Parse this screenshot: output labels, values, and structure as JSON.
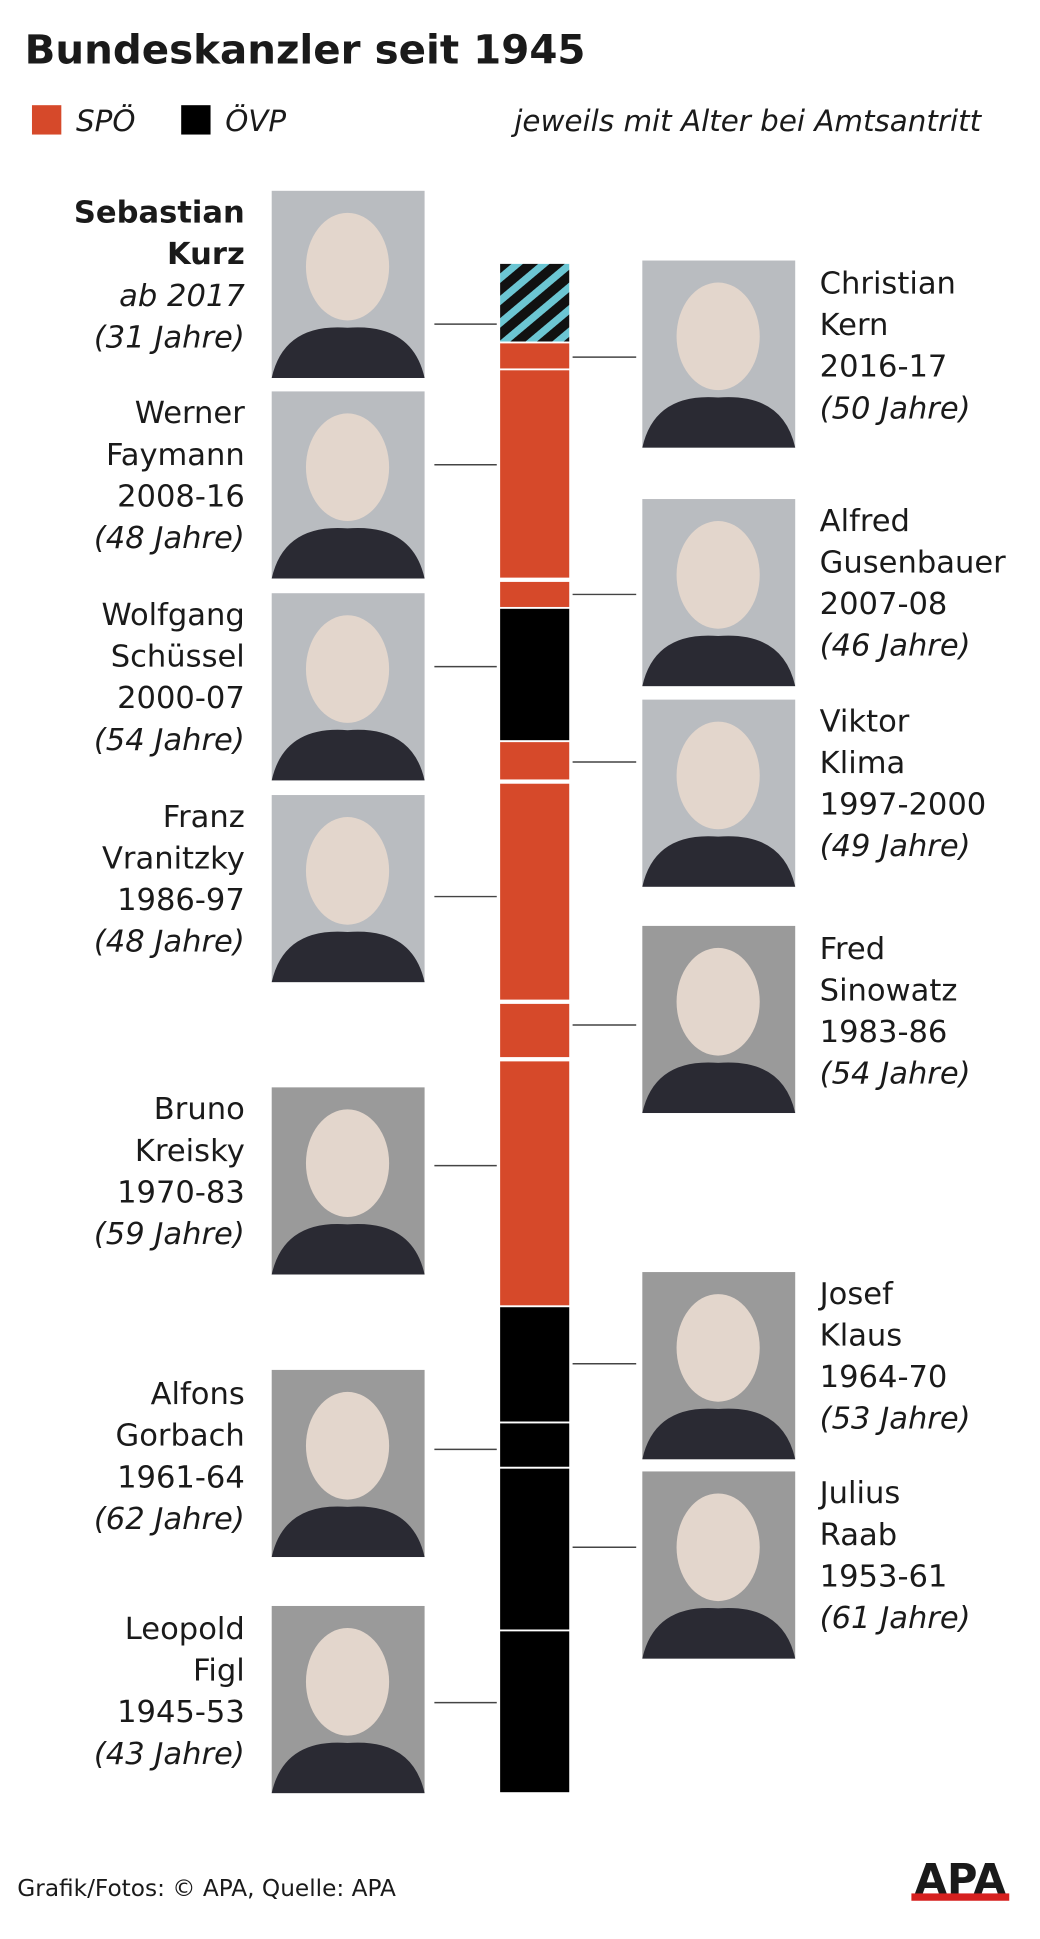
{
  "header": {
    "title": "Bundeskanzler seit 1945",
    "legend": [
      "SPÖ",
      "ÖVP"
    ],
    "note": "jeweils mit Alter bei Amtsantritt"
  },
  "chancellors": [
    {
      "name": [
        "Sebastian",
        "Kurz"
      ],
      "term": "ab 2017",
      "age": "(31 Jahre)"
    },
    {
      "name": [
        "Christian",
        "Kern"
      ],
      "term": "2016-17",
      "age": "(50 Jahre)"
    },
    {
      "name": [
        "Werner",
        "Faymann"
      ],
      "term": "2008-16",
      "age": "(48 Jahre)"
    },
    {
      "name": [
        "Alfred",
        "Gusenbauer"
      ],
      "term": "2007-08",
      "age": "(46 Jahre)"
    },
    {
      "name": [
        "Wolfgang",
        "Schüssel"
      ],
      "term": "2000-07",
      "age": "(54 Jahre)"
    },
    {
      "name": [
        "Viktor",
        "Klima"
      ],
      "term": "1997-2000",
      "age": "(49 Jahre)"
    },
    {
      "name": [
        "Franz",
        "Vranitzky"
      ],
      "term": "1986-97",
      "age": "(48 Jahre)"
    },
    {
      "name": [
        "Fred",
        "Sinowatz"
      ],
      "term": "1983-86",
      "age": "(54 Jahre)"
    },
    {
      "name": [
        "Bruno",
        "Kreisky"
      ],
      "term": "1970-83",
      "age": "(59 Jahre)"
    },
    {
      "name": [
        "Josef",
        "Klaus"
      ],
      "term": "1964-70",
      "age": "(53 Jahre)"
    },
    {
      "name": [
        "Alfons",
        "Gorbach"
      ],
      "term": "1961-64",
      "age": "(62 Jahre)"
    },
    {
      "name": [
        "Julius",
        "Raab"
      ],
      "term": "1953-61",
      "age": "(61 Jahre)"
    },
    {
      "name": [
        "Leopold",
        "Figl"
      ],
      "term": "1945-53",
      "age": "(43 Jahre)"
    }
  ],
  "footer": {
    "credit": "Grafik/Fotos: © APA, Quelle: APA",
    "logo": "APA"
  }
}
